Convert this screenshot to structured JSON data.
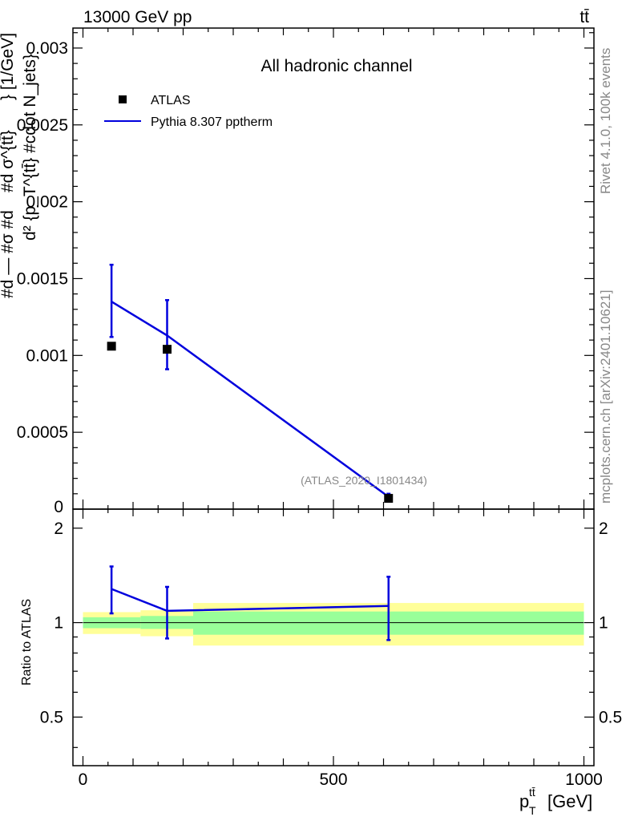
{
  "header": {
    "left": "13000 GeV pp",
    "right": "tt̄"
  },
  "side_text": {
    "top": "Rivet 4.1.0,  100k events",
    "bottom": "mcplots.cern.ch [arXiv:2401.10621]"
  },
  "watermark": "(ATLAS_2020_I1801434)",
  "colors": {
    "data": "#000000",
    "mc": "#0000dd",
    "band_inner": "#99ff99",
    "band_outer": "#ffff99"
  },
  "chart_data": [
    {
      "type": "scatter",
      "title": "All hadronic channel",
      "ylabel_lines": [
        "#d σ^{tt̄}",
        "d² {p_T^{tt̄} #cdot N_jets}",
        "#d — #σ  #d"
      ],
      "ylabel_unit": "} [1/GeV]",
      "xlim": [
        -20,
        1020
      ],
      "ylim": [
        0,
        0.00313
      ],
      "yticks": [
        0.0005,
        0.001,
        0.0015,
        0.002,
        0.0025,
        0.003
      ],
      "ytick_labels": [
        "0.0005",
        "0.001",
        "0.0015",
        "0.002",
        "0.0025",
        "0.003"
      ],
      "ylabel_zero": "0",
      "legend": {
        "position": "top-left",
        "data_label": "ATLAS",
        "mc_label": "Pythia 8.307 pptherm"
      },
      "series": [
        {
          "name": "ATLAS",
          "kind": "data",
          "x": [
            57,
            168,
            610
          ],
          "y": [
            0.00106,
            0.00104,
            7e-05
          ]
        },
        {
          "name": "Pythia 8.307 pptherm",
          "kind": "mc",
          "x": [
            57,
            168,
            610
          ],
          "y": [
            0.00135,
            0.00113,
            8e-05
          ],
          "err_low": [
            0.00023,
            0.00022,
            2e-05
          ],
          "err_high": [
            0.00024,
            0.00023,
            2e-05
          ]
        }
      ]
    },
    {
      "type": "line",
      "ylabel": "Ratio to ATLAS",
      "xlabel": "p_T^{tt̄} [GeV]",
      "xlabel_main": "p",
      "xlabel_sub": "T",
      "xlabel_sup": "tt̄",
      "xlabel_unit": "[GeV]",
      "xlim": [
        -20,
        1020
      ],
      "xticks": [
        0,
        500,
        1000
      ],
      "xtick_labels": [
        "0",
        "500",
        "1000"
      ],
      "ylim": [
        0.35,
        2.3
      ],
      "log_y": true,
      "yticks": [
        0.5,
        1,
        2
      ],
      "ytick_labels": [
        "0.5",
        "1",
        "2"
      ],
      "bands": [
        {
          "x0": 0,
          "x1": 115,
          "inner": [
            0.96,
            1.04
          ],
          "outer": [
            0.92,
            1.08
          ]
        },
        {
          "x0": 115,
          "x1": 220,
          "inner": [
            0.955,
            1.05
          ],
          "outer": [
            0.905,
            1.095
          ]
        },
        {
          "x0": 220,
          "x1": 1000,
          "inner": [
            0.915,
            1.085
          ],
          "outer": [
            0.845,
            1.155
          ]
        }
      ],
      "series": [
        {
          "name": "Pythia 8.307 pptherm",
          "x": [
            57,
            168,
            610
          ],
          "y": [
            1.28,
            1.09,
            1.13
          ],
          "err_low": [
            0.21,
            0.2,
            0.25
          ],
          "err_high": [
            0.23,
            0.21,
            0.27
          ]
        }
      ]
    }
  ]
}
